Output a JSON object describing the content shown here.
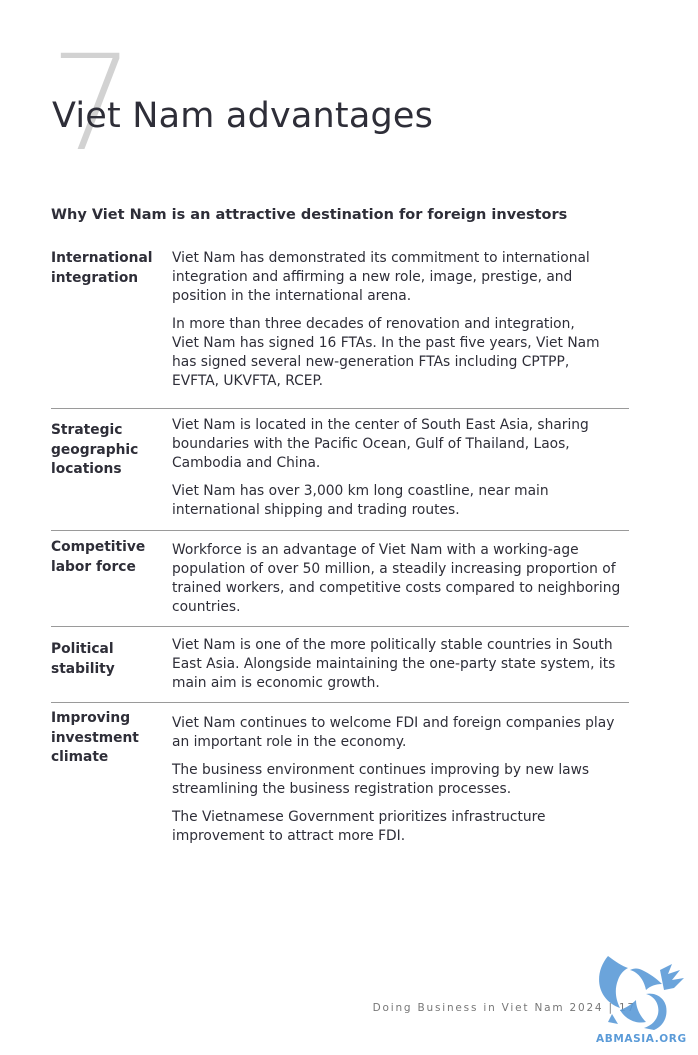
{
  "page": {
    "chapter_number": "7",
    "title": "Viet Nam advantages",
    "subtitle": "Why Viet Nam is an attractive destination for foreign investors"
  },
  "rows": [
    {
      "label": "International\nintegration",
      "paragraphs": [
        "Viet Nam has demonstrated its commitment to international\nintegration and affirming a new role, image, prestige, and\nposition in the international arena.",
        "In more than three decades of renovation and integration,\nViet Nam has signed 16 FTAs. In the past five years, Viet Nam\nhas signed several new-generation FTAs including CPTPP,\nEVFTA, UKVFTA, RCEP."
      ]
    },
    {
      "label": "Strategic\ngeographic\nlocations",
      "paragraphs": [
        "Viet Nam is located in the center of South East Asia, sharing\nboundaries with the Pacific Ocean, Gulf of Thailand, Laos,\nCambodia and China.",
        "Viet Nam has over 3,000 km long coastline, near main\ninternational shipping and trading routes."
      ]
    },
    {
      "label": "Competitive\nlabor force",
      "paragraphs": [
        "Workforce is an advantage of Viet Nam with a working-age\npopulation of over 50 million, a steadily increasing proportion of\ntrained workers, and competitive costs compared to neighboring\ncountries."
      ]
    },
    {
      "label": "Political\nstability",
      "paragraphs": [
        "Viet Nam is one of the more politically stable countries in South\nEast Asia. Alongside maintaining the one-party state system, its\nmain aim is economic growth."
      ]
    },
    {
      "label": "Improving\ninvestment\nclimate",
      "paragraphs": [
        "Viet Nam continues to welcome FDI and foreign companies play\nan important role in the economy.",
        "The business environment continues improving by new laws\nstreamlining the business registration processes.",
        "The Vietnamese Government prioritizes infrastructure\nimprovement to attract more FDI."
      ]
    }
  ],
  "footer": {
    "text": "Doing Business in Viet Nam 2024 | 17"
  },
  "watermark": {
    "text": "ABMASIA.ORG",
    "color": "#4a90d9"
  }
}
